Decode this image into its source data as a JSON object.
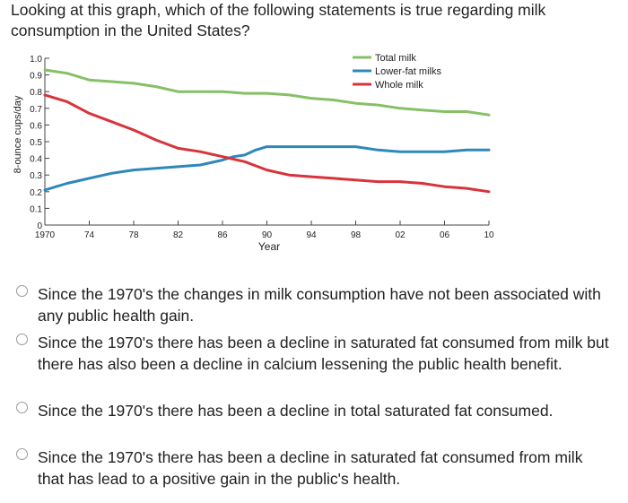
{
  "question": "Looking at this graph, which of the following statements is true regarding milk consumption in the United States?",
  "chart_data": {
    "type": "line",
    "xlabel": "Year",
    "ylabel": "8-ounce cups/day",
    "xlim": [
      1970,
      2010
    ],
    "ylim": [
      0,
      1.0
    ],
    "x_ticks": [
      1970,
      1974,
      1978,
      1982,
      1986,
      1990,
      1994,
      1998,
      2002,
      2006,
      2010
    ],
    "x_tick_labels": [
      "1970",
      "74",
      "78",
      "82",
      "86",
      "90",
      "94",
      "98",
      "02",
      "06",
      "10"
    ],
    "y_ticks": [
      0,
      0.1,
      0.2,
      0.3,
      0.4,
      0.5,
      0.6,
      0.7,
      0.8,
      0.9,
      1.0
    ],
    "y_tick_labels": [
      "0",
      "0.1",
      "0.2",
      "0.3",
      "0.4",
      "0.5",
      "0.6",
      "0.7",
      "0.8",
      "0.9",
      "1.0"
    ],
    "legend_position": "top-right",
    "series": [
      {
        "name": "Total milk",
        "color": "#86c066",
        "x": [
          1970,
          1972,
          1974,
          1976,
          1978,
          1980,
          1982,
          1984,
          1986,
          1988,
          1990,
          1992,
          1994,
          1996,
          1998,
          2000,
          2002,
          2004,
          2006,
          2008,
          2010
        ],
        "y": [
          0.93,
          0.91,
          0.87,
          0.86,
          0.85,
          0.83,
          0.8,
          0.8,
          0.8,
          0.79,
          0.79,
          0.78,
          0.76,
          0.75,
          0.73,
          0.72,
          0.7,
          0.69,
          0.68,
          0.68,
          0.66
        ]
      },
      {
        "name": "Lower-fat milks",
        "color": "#2e88b8",
        "x": [
          1970,
          1972,
          1974,
          1976,
          1978,
          1980,
          1982,
          1984,
          1986,
          1987,
          1988,
          1989,
          1990,
          1992,
          1994,
          1996,
          1998,
          2000,
          2002,
          2004,
          2006,
          2008,
          2010
        ],
        "y": [
          0.21,
          0.25,
          0.28,
          0.31,
          0.33,
          0.34,
          0.35,
          0.36,
          0.39,
          0.41,
          0.42,
          0.45,
          0.47,
          0.47,
          0.47,
          0.47,
          0.47,
          0.45,
          0.44,
          0.44,
          0.44,
          0.45,
          0.45
        ]
      },
      {
        "name": "Whole milk",
        "color": "#d8333b",
        "x": [
          1970,
          1972,
          1974,
          1976,
          1978,
          1980,
          1982,
          1984,
          1986,
          1988,
          1990,
          1992,
          1994,
          1996,
          1998,
          2000,
          2002,
          2004,
          2006,
          2008,
          2010
        ],
        "y": [
          0.78,
          0.74,
          0.67,
          0.62,
          0.57,
          0.51,
          0.46,
          0.44,
          0.41,
          0.38,
          0.33,
          0.3,
          0.29,
          0.28,
          0.27,
          0.26,
          0.26,
          0.25,
          0.23,
          0.22,
          0.2
        ]
      }
    ]
  },
  "options": [
    {
      "text": "Since the 1970's the changes in milk consumption have not been associated with any public health gain."
    },
    {
      "text": "Since the 1970's there has been a decline in saturated fat consumed from milk but there has also been a decline in calcium lessening the public health benefit."
    },
    {
      "text": "Since the 1970's there has been a decline in total saturated fat consumed."
    },
    {
      "text": "Since the 1970's there has been a decline in saturated fat consumed from milk that has lead to a positive gain in the public's health."
    }
  ]
}
